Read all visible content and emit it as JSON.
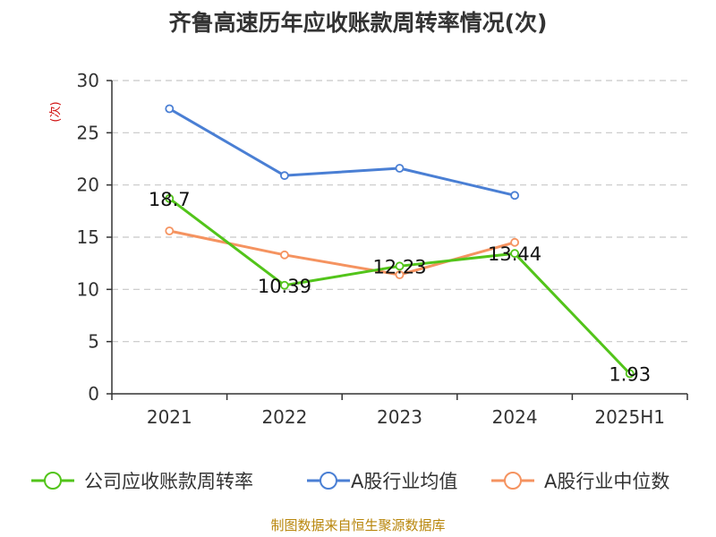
{
  "chart_data": {
    "type": "line",
    "title": "齐鲁高速历年应收账款周转率情况(次)",
    "ylabel": "(次)",
    "xlabel": "",
    "categories": [
      "2021",
      "2022",
      "2023",
      "2024",
      "2025H1"
    ],
    "ylim": [
      0,
      30
    ],
    "yticks": [
      0,
      5,
      10,
      15,
      20,
      25,
      30
    ],
    "grid": true,
    "legend_position": "bottom",
    "series": [
      {
        "name": "公司应收账款周转率",
        "color": "#52c41a",
        "values": [
          18.7,
          10.39,
          12.23,
          13.44,
          1.93
        ],
        "labels": [
          "18.7",
          "10.39",
          "12.23",
          "13.44",
          "1.93"
        ]
      },
      {
        "name": "A股行业均值",
        "color": "#4a7fd4",
        "values": [
          27.3,
          20.9,
          21.6,
          19.0,
          null
        ]
      },
      {
        "name": "A股行业中位数",
        "color": "#f59360",
        "values": [
          15.6,
          13.3,
          11.4,
          14.5,
          null
        ]
      }
    ]
  },
  "source": "制图数据来自恒生聚源数据库"
}
